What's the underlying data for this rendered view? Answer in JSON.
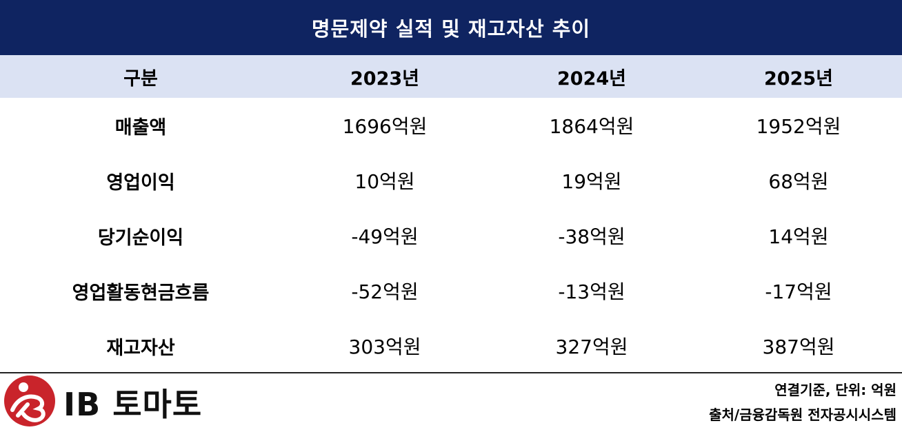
{
  "title": "명문제약 실적 및 재고자산 추이",
  "table": {
    "headers": [
      "구분",
      "2023년",
      "2024년",
      "2025년"
    ],
    "rows": [
      {
        "label": "매출액",
        "values": [
          "1696억원",
          "1864억원",
          "1952억원"
        ]
      },
      {
        "label": "영업이익",
        "values": [
          "10억원",
          "19억원",
          "68억원"
        ]
      },
      {
        "label": "당기순이익",
        "values": [
          "-49억원",
          "-38억원",
          "14억원"
        ]
      },
      {
        "label": "영업활동현금흐름",
        "values": [
          "-52억원",
          "-13억원",
          "-17억원"
        ]
      },
      {
        "label": "재고자산",
        "values": [
          "303억원",
          "327억원",
          "387억원"
        ]
      }
    ]
  },
  "footer": {
    "note1": "연결기준, 단위: 억원",
    "note2": "출처/금융감독원 전자공시시스템"
  },
  "logo": {
    "text": "IB 토마토",
    "icon": "ib-tomato-logo-icon",
    "colors": {
      "mark": "#c9242b",
      "text": "#111111"
    }
  },
  "colors": {
    "title_bg": "#0f2461",
    "header_bg": "#dbe2f3"
  }
}
